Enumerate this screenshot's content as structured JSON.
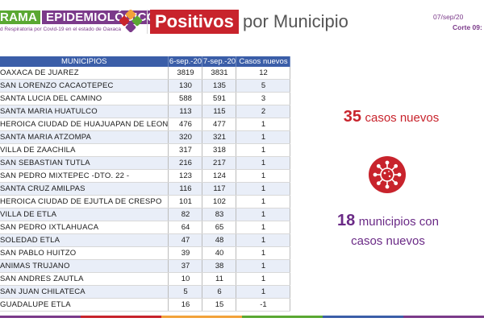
{
  "header": {
    "brand_part1": "RAMA",
    "brand_part2": "EPIDEMIOLÓGICO",
    "brand_subtitle": "d Respiratoria por Covid-19 en el estado de Oaxaca",
    "title_highlight": "Positivos",
    "title_rest": "por Municipio",
    "date": "07/sep/20",
    "cut": "Corte 09:"
  },
  "table": {
    "headers": [
      "MUNICIPIOS",
      "6-sep.-20",
      "7-sep.-20",
      "Casos nuevos"
    ],
    "rows": [
      [
        "OAXACA DE JUAREZ",
        "3819",
        "3831",
        "12"
      ],
      [
        "SAN LORENZO CACAOTEPEC",
        "130",
        "135",
        "5"
      ],
      [
        "SANTA LUCIA DEL CAMINO",
        "588",
        "591",
        "3"
      ],
      [
        "SANTA MARIA HUATULCO",
        "113",
        "115",
        "2"
      ],
      [
        "HEROICA CIUDAD DE HUAJUAPAN DE LEON",
        "476",
        "477",
        "1"
      ],
      [
        "SANTA MARIA ATZOMPA",
        "320",
        "321",
        "1"
      ],
      [
        "VILLA DE ZAACHILA",
        "317",
        "318",
        "1"
      ],
      [
        "SAN SEBASTIAN TUTLA",
        "216",
        "217",
        "1"
      ],
      [
        "SAN PEDRO MIXTEPEC -DTO. 22 -",
        "123",
        "124",
        "1"
      ],
      [
        "SANTA CRUZ AMILPAS",
        "116",
        "117",
        "1"
      ],
      [
        "HEROICA CIUDAD DE EJUTLA DE CRESPO",
        "101",
        "102",
        "1"
      ],
      [
        "VILLA DE ETLA",
        "82",
        "83",
        "1"
      ],
      [
        "SAN PEDRO IXTLAHUACA",
        "64",
        "65",
        "1"
      ],
      [
        "SOLEDAD ETLA",
        "47",
        "48",
        "1"
      ],
      [
        "SAN PABLO HUITZO",
        "39",
        "40",
        "1"
      ],
      [
        "ANIMAS TRUJANO",
        "37",
        "38",
        "1"
      ],
      [
        "SAN ANDRES ZAUTLA",
        "10",
        "11",
        "1"
      ],
      [
        "SAN JUAN CHILATECA",
        "5",
        "6",
        "1"
      ],
      [
        "GUADALUPE ETLA",
        "16",
        "15",
        "-1"
      ]
    ]
  },
  "stats": {
    "new_cases_number": "35",
    "new_cases_text": "casos nuevos",
    "icon": "virus-icon",
    "municipalities_number": "18",
    "municipalities_text_1": "municipios con",
    "municipalities_text_2": "casos nuevos"
  },
  "colors": {
    "accent_red": "#c8232c",
    "brand_purple": "#7b3a8a",
    "brand_green": "#5aa832",
    "table_header_blue": "#3b5ea8",
    "bottom_bar": [
      "#7b3a8a",
      "#c8232c",
      "#f2a23a",
      "#5aa832",
      "#3b5ea8",
      "#7b3a8a"
    ]
  }
}
